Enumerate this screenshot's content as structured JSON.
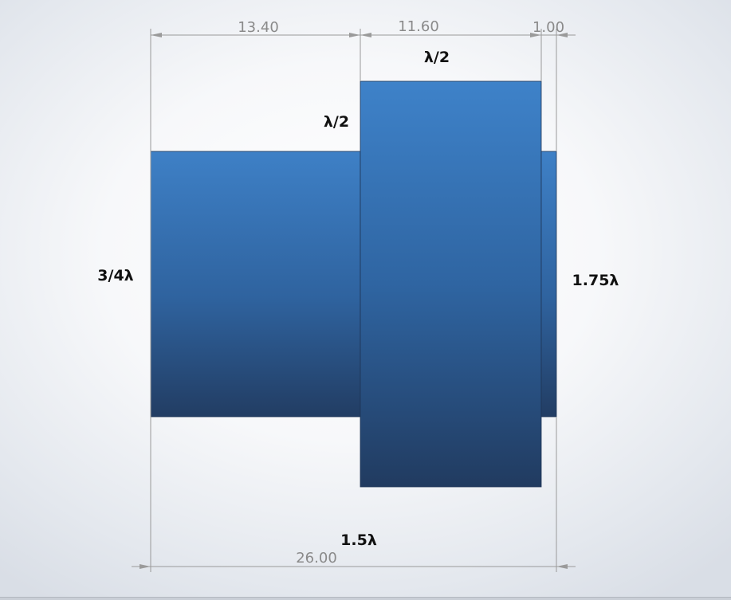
{
  "dimensions": {
    "section_1_length": "13.40",
    "section_2_length": "11.60",
    "section_3_length": "1.00",
    "total_length": "26.00"
  },
  "annotations": {
    "top_half_wave": "λ/2",
    "middle_half_wave": "λ/2",
    "left_three_quarter": "3/4λ",
    "right_one_seventy_five": "1.75λ",
    "bottom_one_and_half": "1.5λ"
  },
  "colors": {
    "part_top": "#3d7ec4",
    "part_bottom": "#233f66",
    "dimension_gray": "#8a8a8a",
    "annotation_black": "#111111"
  }
}
